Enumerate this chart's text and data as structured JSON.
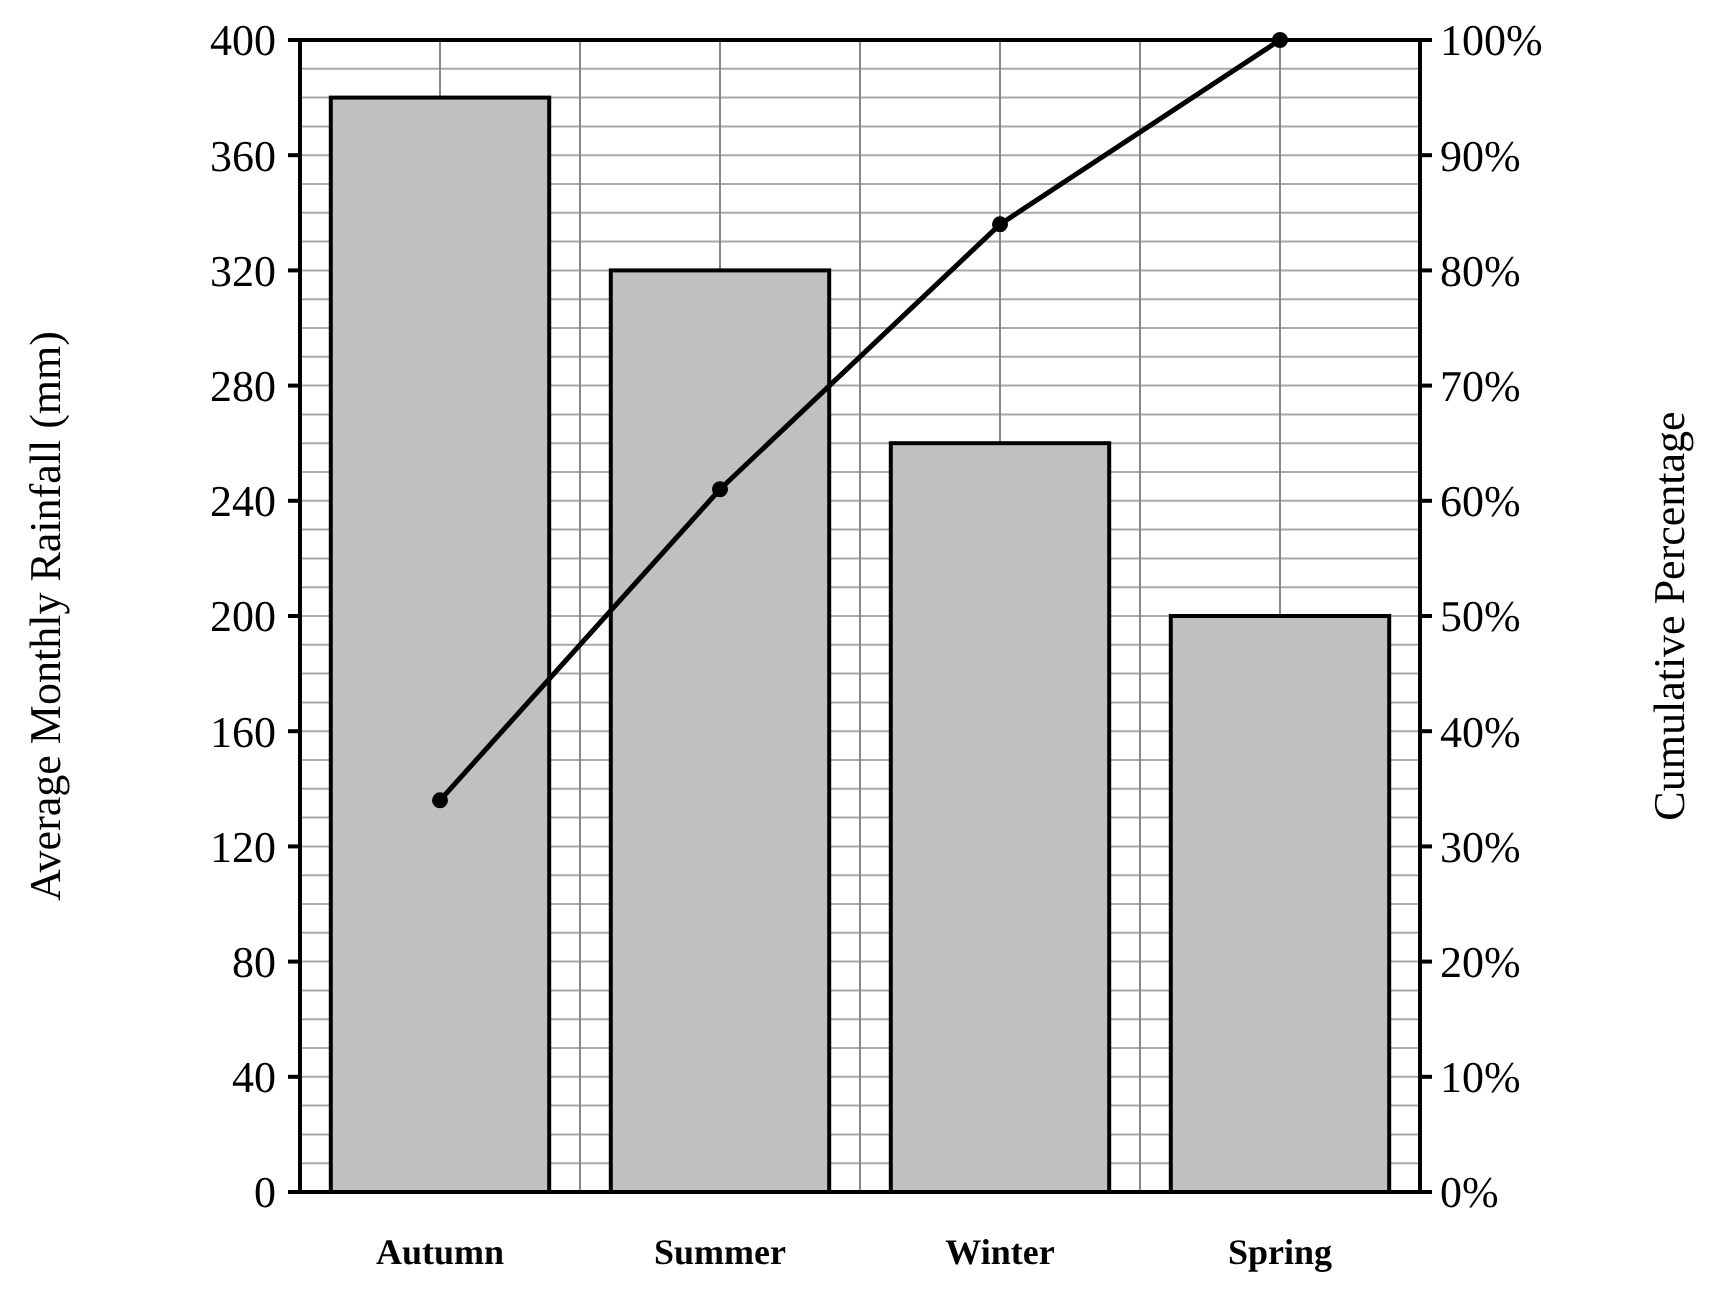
{
  "chart_data": {
    "type": "bar",
    "categories": [
      "Autumn",
      "Summer",
      "Winter",
      "Spring"
    ],
    "ylabel": "Average Monthly Rainfall (mm)",
    "y2label": "Cumulative Percentage",
    "series": [
      {
        "color": "#c0c0c0",
        "values": [
          380,
          320,
          260,
          200
        ]
      },
      {
        "type": "line",
        "axis": "y2",
        "color": "#000000",
        "values": [
          34,
          61,
          84,
          100
        ]
      }
    ],
    "ylim": [
      0,
      400
    ],
    "yticks": [
      0,
      {
        "value": 10,
        "label": null
      },
      {
        "value": 20,
        "label": null
      },
      {
        "value": 30,
        "label": null
      },
      40,
      {
        "value": 50,
        "label": null
      },
      {
        "value": 60,
        "label": null
      },
      {
        "value": 70,
        "label": null
      },
      80,
      {
        "value": 90,
        "label": null
      },
      {
        "value": 100,
        "label": null
      },
      {
        "value": 110,
        "label": null
      },
      120,
      {
        "value": 130,
        "label": null
      },
      {
        "value": 140,
        "label": null
      },
      {
        "value": 150,
        "label": null
      },
      160,
      {
        "value": 170,
        "label": null
      },
      {
        "value": 180,
        "label": null
      },
      {
        "value": 190,
        "label": null
      },
      200,
      {
        "value": 210,
        "label": null
      },
      {
        "value": 220,
        "label": null
      },
      {
        "value": 230,
        "label": null
      },
      240,
      {
        "value": 250,
        "label": null
      },
      {
        "value": 260,
        "label": null
      },
      {
        "value": 270,
        "label": null
      },
      280,
      {
        "value": 290,
        "label": null
      },
      {
        "value": 300,
        "label": null
      },
      {
        "value": 310,
        "label": null
      },
      320,
      {
        "value": 330,
        "label": null
      },
      {
        "value": 340,
        "label": null
      },
      {
        "value": 350,
        "label": null
      },
      360,
      {
        "value": 370,
        "label": null
      },
      {
        "value": 380,
        "label": null
      },
      {
        "value": 390,
        "label": null
      },
      400
    ],
    "y2lim": [
      0,
      100
    ],
    "y2ticks": [
      {
        "value": 0,
        "label": "0%"
      },
      {
        "value": 10,
        "label": "10%"
      },
      {
        "value": 20,
        "label": "20%"
      },
      {
        "value": 30,
        "label": "30%"
      },
      {
        "value": 40,
        "label": "40%"
      },
      {
        "value": 50,
        "label": "50%"
      },
      {
        "value": 60,
        "label": "60%"
      },
      {
        "value": 70,
        "label": "70%"
      },
      {
        "value": 80,
        "label": "80%"
      },
      {
        "value": 90,
        "label": "90%"
      },
      {
        "value": 100,
        "label": "100%"
      }
    ],
    "grid": true,
    "marker": "circle"
  }
}
